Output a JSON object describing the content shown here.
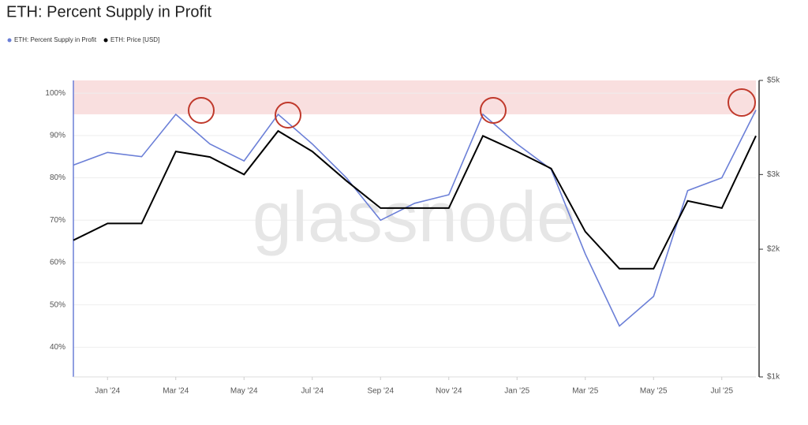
{
  "chart_data": {
    "type": "line",
    "title": "ETH: Percent Supply in Profit",
    "watermark": "glassnode",
    "x": [
      "2023-12",
      "2024-01",
      "2024-02",
      "2024-03",
      "2024-04",
      "2024-05",
      "2024-06",
      "2024-07",
      "2024-08",
      "2024-09",
      "2024-10",
      "2024-11",
      "2024-12",
      "2025-01",
      "2025-02",
      "2025-03",
      "2025-04",
      "2025-05",
      "2025-06",
      "2025-07",
      "2025-08"
    ],
    "xticks": [
      {
        "value": "2024-01",
        "label": "Jan '24"
      },
      {
        "value": "2024-03",
        "label": "Mar '24"
      },
      {
        "value": "2024-05",
        "label": "May '24"
      },
      {
        "value": "2024-07",
        "label": "Jul '24"
      },
      {
        "value": "2024-09",
        "label": "Sep '24"
      },
      {
        "value": "2024-11",
        "label": "Nov '24"
      },
      {
        "value": "2025-01",
        "label": "Jan '25"
      },
      {
        "value": "2025-03",
        "label": "Mar '25"
      },
      {
        "value": "2025-05",
        "label": "May '25"
      },
      {
        "value": "2025-07",
        "label": "Jul '25"
      }
    ],
    "series": [
      {
        "name": "ETH: Percent Supply in Profit",
        "color": "#6b7fd7",
        "values": [
          83,
          86,
          85,
          95,
          88,
          84,
          95,
          88,
          80,
          70,
          74,
          76,
          95,
          88,
          82,
          62,
          45,
          52,
          77,
          80,
          96
        ]
      },
      {
        "name": "ETH: Price [USD]",
        "color": "#000000",
        "axis": "y2",
        "values": [
          2100,
          2300,
          2300,
          3400,
          3300,
          3000,
          3800,
          3400,
          2900,
          2500,
          2500,
          2500,
          3700,
          3400,
          3100,
          2200,
          1800,
          1800,
          2600,
          2500,
          3700
        ]
      }
    ],
    "ylim": [
      33,
      103
    ],
    "yticks": [
      {
        "value": 40,
        "label": "40%"
      },
      {
        "value": 50,
        "label": "50%"
      },
      {
        "value": 60,
        "label": "60%"
      },
      {
        "value": 70,
        "label": "70%"
      },
      {
        "value": 80,
        "label": "80%"
      },
      {
        "value": 90,
        "label": "90%"
      },
      {
        "value": 100,
        "label": "100%"
      }
    ],
    "y2lim": [
      1000,
      5000
    ],
    "y2scale": "log",
    "y2ticks": [
      {
        "value": 1000,
        "label": "$1k"
      },
      {
        "value": 2000,
        "label": "$2k"
      },
      {
        "value": 3000,
        "label": "$3k"
      },
      {
        "value": 5000,
        "label": "$5k"
      }
    ],
    "highlight_band": [
      95,
      103
    ],
    "grid": true
  }
}
